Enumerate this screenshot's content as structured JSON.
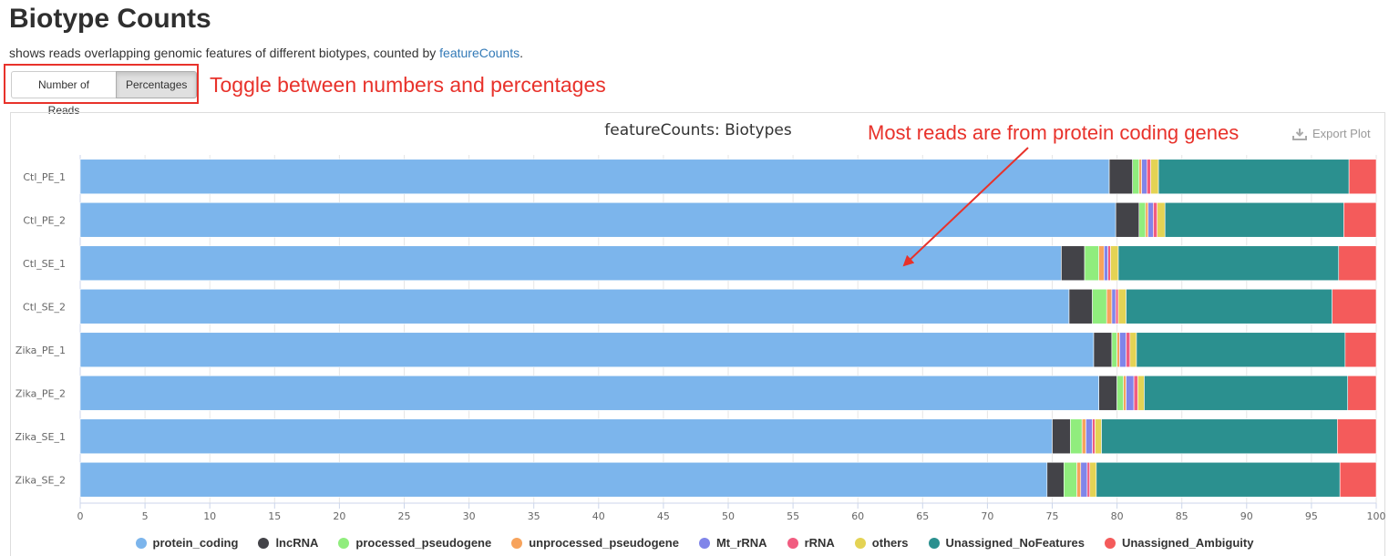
{
  "header": {
    "title": "Biotype Counts",
    "subtitle_prefix": "shows reads overlapping genomic features of different biotypes, counted by ",
    "subtitle_link": "featureCounts",
    "subtitle_suffix": "."
  },
  "toggle": {
    "number_label": "Number of Reads",
    "percent_label": "Percentages",
    "annotation": "Toggle between numbers and percentages"
  },
  "export_label": "Export Plot",
  "annotations": {
    "arrow_note": "Most reads are from protein coding genes"
  },
  "chart_data": {
    "type": "bar",
    "orientation": "horizontal",
    "stacked": true,
    "title": "featureCounts: Biotypes",
    "xlabel": "",
    "ylabel": "",
    "xlim": [
      0,
      100
    ],
    "x_ticks": [
      0,
      5,
      10,
      15,
      20,
      25,
      30,
      35,
      40,
      45,
      50,
      55,
      60,
      65,
      70,
      75,
      80,
      85,
      90,
      95,
      100
    ],
    "grid": true,
    "legend_position": "bottom",
    "categories": [
      "Ctl_PE_1",
      "Ctl_PE_2",
      "Ctl_SE_1",
      "Ctl_SE_2",
      "Zika_PE_1",
      "Zika_PE_2",
      "Zika_SE_1",
      "Zika_SE_2"
    ],
    "series": [
      {
        "name": "protein_coding",
        "color": "#7cb5ec",
        "values": [
          79.4,
          79.9,
          75.7,
          76.3,
          78.2,
          78.6,
          75.0,
          74.6
        ]
      },
      {
        "name": "lncRNA",
        "color": "#434348",
        "values": [
          1.8,
          1.8,
          1.8,
          1.8,
          1.4,
          1.4,
          1.4,
          1.3
        ]
      },
      {
        "name": "processed_pseudogene",
        "color": "#90ed7d",
        "values": [
          0.5,
          0.5,
          1.1,
          1.1,
          0.4,
          0.5,
          0.9,
          1.0
        ]
      },
      {
        "name": "unprocessed_pseudogene",
        "color": "#f7a35c",
        "values": [
          0.2,
          0.2,
          0.4,
          0.4,
          0.2,
          0.2,
          0.3,
          0.3
        ]
      },
      {
        "name": "Mt_rRNA",
        "color": "#8085e9",
        "values": [
          0.4,
          0.4,
          0.3,
          0.3,
          0.5,
          0.6,
          0.5,
          0.5
        ]
      },
      {
        "name": "rRNA",
        "color": "#f15c80",
        "values": [
          0.3,
          0.3,
          0.2,
          0.2,
          0.3,
          0.3,
          0.2,
          0.2
        ]
      },
      {
        "name": "others",
        "color": "#e4d354",
        "values": [
          0.6,
          0.6,
          0.6,
          0.6,
          0.5,
          0.5,
          0.5,
          0.5
        ]
      },
      {
        "name": "Unassigned_NoFeatures",
        "color": "#2b908f",
        "values": [
          14.7,
          13.8,
          17.0,
          15.9,
          16.1,
          15.7,
          18.2,
          18.8
        ]
      },
      {
        "name": "Unassigned_Ambiguity",
        "color": "#f45b5b",
        "values": [
          2.1,
          2.5,
          2.9,
          3.4,
          2.4,
          2.2,
          3.0,
          2.8
        ]
      }
    ]
  }
}
